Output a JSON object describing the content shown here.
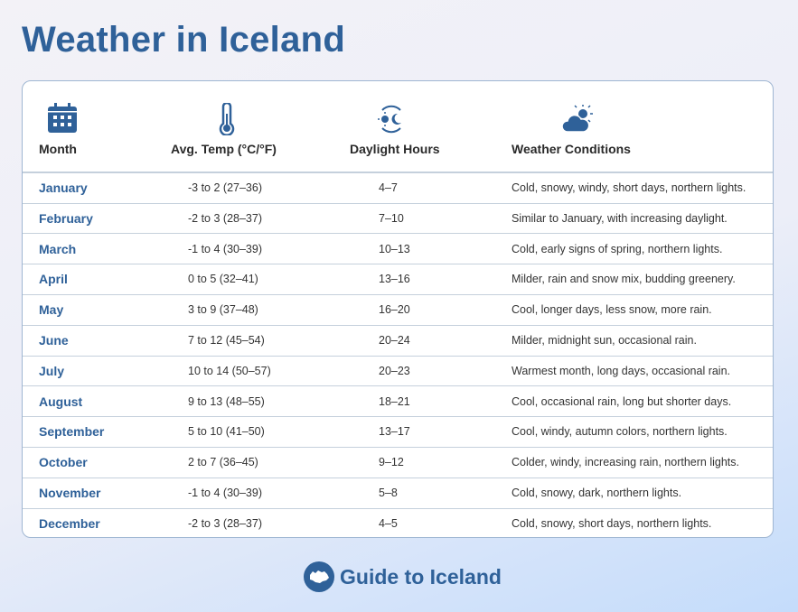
{
  "title": "Weather in Iceland",
  "headers": {
    "month": "Month",
    "temp": "Avg. Temp (°C/°F)",
    "daylight": "Daylight Hours",
    "conditions": "Weather Conditions"
  },
  "icons": {
    "month": "calendar-icon",
    "temp": "thermometer-icon",
    "daylight": "sun-moon-cycle-icon",
    "conditions": "cloud-sun-icon"
  },
  "rows": [
    {
      "month": "January",
      "temp": "-3 to 2 (27–36)",
      "daylight": "4–7",
      "conditions": "Cold, snowy, windy, short days, northern lights."
    },
    {
      "month": "February",
      "temp": "-2 to 3 (28–37)",
      "daylight": "7–10",
      "conditions": "Similar to January, with increasing daylight."
    },
    {
      "month": "March",
      "temp": "-1 to 4 (30–39)",
      "daylight": "10–13",
      "conditions": "Cold, early signs of spring, northern lights."
    },
    {
      "month": "April",
      "temp": "0 to 5 (32–41)",
      "daylight": "13–16",
      "conditions": "Milder, rain and snow mix, budding greenery."
    },
    {
      "month": "May",
      "temp": "3 to 9 (37–48)",
      "daylight": "16–20",
      "conditions": "Cool, longer days, less snow, more rain."
    },
    {
      "month": "June",
      "temp": "7 to 12 (45–54)",
      "daylight": "20–24",
      "conditions": "Milder, midnight sun, occasional rain."
    },
    {
      "month": "July",
      "temp": "10 to 14 (50–57)",
      "daylight": "20–23",
      "conditions": "Warmest month, long days, occasional rain."
    },
    {
      "month": "August",
      "temp": "9 to 13 (48–55)",
      "daylight": "18–21",
      "conditions": "Cool, occasional rain, long but shorter days."
    },
    {
      "month": "September",
      "temp": "5 to 10 (41–50)",
      "daylight": "13–17",
      "conditions": "Cool, windy, autumn colors, northern lights."
    },
    {
      "month": "October",
      "temp": "2 to 7 (36–45)",
      "daylight": "9–12",
      "conditions": "Colder, windy, increasing rain, northern lights."
    },
    {
      "month": "November",
      "temp": "-1 to 4 (30–39)",
      "daylight": "5–8",
      "conditions": "Cold, snowy, dark, northern lights."
    },
    {
      "month": "December",
      "temp": "-2 to 3 (28–37)",
      "daylight": "4–5",
      "conditions": "Cold, snowy, short days, northern lights."
    }
  ],
  "brand": "Guide to Iceland",
  "colors": {
    "accent": "#2f6199",
    "border": "#9fb6d2"
  }
}
